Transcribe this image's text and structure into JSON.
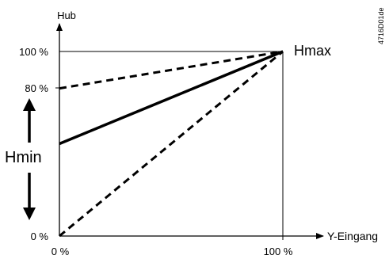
{
  "chart_data": {
    "type": "line",
    "xlabel": "Y-Eingang",
    "ylabel": "Hub",
    "x_ticks": [
      "0 %",
      "100 %"
    ],
    "y_ticks": [
      "0 %",
      "80 %",
      "100 %"
    ],
    "xlim": [
      0,
      100
    ],
    "ylim": [
      0,
      100
    ],
    "series": [
      {
        "style": "dashed",
        "x": [
          0,
          100
        ],
        "y": [
          80,
          100
        ]
      },
      {
        "style": "solid",
        "x": [
          0,
          100
        ],
        "y": [
          50,
          100
        ]
      },
      {
        "style": "dashed",
        "x": [
          0,
          100
        ],
        "y": [
          0,
          100
        ]
      }
    ],
    "annotations": {
      "hmax": "Hmax",
      "hmin": "Hmin"
    },
    "figure_id": "4716D01de"
  }
}
